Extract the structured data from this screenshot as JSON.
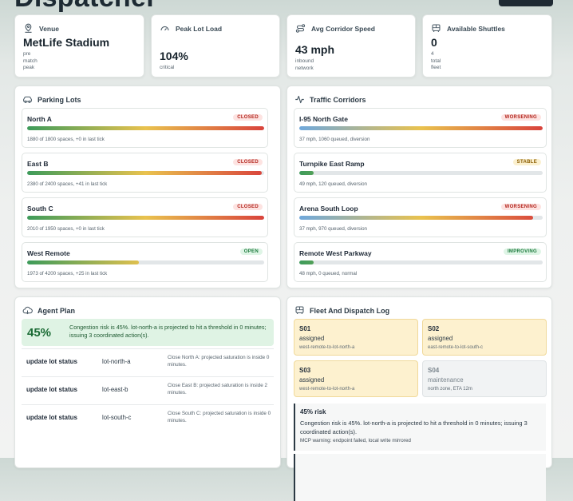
{
  "app": {
    "title": "Dispatcher"
  },
  "stats": {
    "venue": {
      "label": "Venue",
      "value": "MetLife Stadium",
      "sub": [
        "pre",
        "match",
        "peak"
      ]
    },
    "peak_lot_load": {
      "label": "Peak Lot Load",
      "value": "104%",
      "sub": [
        "critical"
      ]
    },
    "avg_corridor_speed": {
      "label": "Avg Corridor Speed",
      "value": "43 mph",
      "sub": [
        "inbound",
        "network"
      ]
    },
    "available_shuttles": {
      "label": "Available Shuttles",
      "value": "0",
      "sub": [
        "4",
        "total",
        "fleet"
      ]
    }
  },
  "parking": {
    "title": "Parking Lots",
    "lots": [
      {
        "name": "North A",
        "status": "CLOSED",
        "status_tone": "red",
        "load": 1.0,
        "meta": "1880 of 1800 spaces, +0 in last tick"
      },
      {
        "name": "East B",
        "status": "CLOSED",
        "status_tone": "red",
        "load": 0.99,
        "meta": "2380 of 2400 spaces, +41 in last tick"
      },
      {
        "name": "South C",
        "status": "CLOSED",
        "status_tone": "red",
        "load": 1.0,
        "meta": "2010 of 1950 spaces, +0 in last tick"
      },
      {
        "name": "West Remote",
        "status": "OPEN",
        "status_tone": "green",
        "load": 0.47,
        "meta": "1973 of 4200 spaces, +25 in last tick"
      }
    ]
  },
  "traffic": {
    "title": "Traffic Corridors",
    "corridors": [
      {
        "name": "I-95 North Gate",
        "status": "WORSENING",
        "status_tone": "red",
        "load": 1.0,
        "meta": "37 mph, 1060 queued, diversion"
      },
      {
        "name": "Turnpike East Ramp",
        "status": "STABLE",
        "status_tone": "amber",
        "load": 0.06,
        "meta": "49 mph, 120 queued, diversion"
      },
      {
        "name": "Arena South Loop",
        "status": "WORSENING",
        "status_tone": "red",
        "load": 0.96,
        "meta": "37 mph, 970 queued, diversion"
      },
      {
        "name": "Remote West Parkway",
        "status": "IMPROVING",
        "status_tone": "green",
        "load": 0.06,
        "meta": "48 mph, 0 queued, normal"
      }
    ]
  },
  "agent_plan": {
    "title": "Agent Plan",
    "risk_pct": "45%",
    "summary": "Congestion risk is 45%. lot-north-a is projected to hit a threshold in 0 minutes; issuing 3 coordinated action(s).",
    "actions": [
      {
        "name": "update lot status",
        "target": "lot-north-a",
        "note": "Close North A: projected saturation is inside 0 minutes."
      },
      {
        "name": "update lot status",
        "target": "lot-east-b",
        "note": "Close East B: projected saturation is inside 2 minutes."
      },
      {
        "name": "update lot status",
        "target": "lot-south-c",
        "note": "Close South C: projected saturation is inside 0 minutes."
      }
    ]
  },
  "fleet": {
    "title": "Fleet And Dispatch Log",
    "shuttles": [
      {
        "id": "S01",
        "status": "assigned",
        "route": "west-remote-to-lot-north-a",
        "tone": "amber"
      },
      {
        "id": "S02",
        "status": "assigned",
        "route": "east-remote-to-lot-south-c",
        "tone": "amber"
      },
      {
        "id": "S03",
        "status": "assigned",
        "route": "west-remote-to-lot-north-a",
        "tone": "amber"
      },
      {
        "id": "S04",
        "status": "maintenance",
        "route": "north zone, ETA 12m",
        "tone": "grey"
      }
    ],
    "log": [
      {
        "title": "45% risk",
        "body": "Congestion risk is 45%. lot-north-a is projected to hit a threshold in 0 minutes; issuing 3 coordinated action(s).",
        "mcp": "MCP warning: endpoint failed, local write mirrored"
      }
    ]
  },
  "colors": {
    "accent": "#1f2a33",
    "status_red": "#d64541",
    "status_green": "#2e9e5b",
    "status_amber": "#e8b84a"
  }
}
